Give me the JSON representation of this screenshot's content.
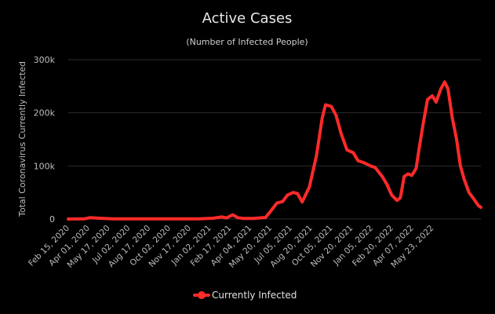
{
  "chart_data": {
    "type": "line",
    "title": "Active Cases",
    "subtitle": "(Number of Infected People)",
    "ylabel": "Total Coronavirus Currently Infected",
    "xlabel": "",
    "ylim": [
      0,
      300000
    ],
    "yticks": [
      {
        "value": 0,
        "label": "0"
      },
      {
        "value": 100000,
        "label": "100k"
      },
      {
        "value": 200000,
        "label": "200k"
      },
      {
        "value": 300000,
        "label": "300k"
      }
    ],
    "xticks": [
      "Feb 15, 2020",
      "Apr 01, 2020",
      "May 17, 2020",
      "Jul 02, 2020",
      "Aug 17, 2020",
      "Oct 02, 2020",
      "Nov 17, 2020",
      "Jan 02, 2021",
      "Feb 17, 2021",
      "Apr 04, 2021",
      "May 20, 2021",
      "Jul 05, 2021",
      "Aug 20, 2021",
      "Oct 05, 2021",
      "Nov 20, 2021",
      "Jan 05, 2022",
      "Feb 20, 2022",
      "Apr 07, 2022",
      "May 23, 2022"
    ],
    "grid": true,
    "legend_position": "bottom-center",
    "series": [
      {
        "name": "Currently Infected",
        "color": "#ff2a2a",
        "points": [
          [
            "2020-02-15",
            0
          ],
          [
            "2020-03-20",
            500
          ],
          [
            "2020-04-01",
            2500
          ],
          [
            "2020-04-20",
            1500
          ],
          [
            "2020-05-17",
            500
          ],
          [
            "2020-07-02",
            300
          ],
          [
            "2020-08-17",
            300
          ],
          [
            "2020-10-02",
            300
          ],
          [
            "2020-11-17",
            500
          ],
          [
            "2020-12-15",
            1500
          ],
          [
            "2021-01-02",
            4000
          ],
          [
            "2021-01-12",
            2000
          ],
          [
            "2021-01-25",
            8000
          ],
          [
            "2021-02-05",
            2500
          ],
          [
            "2021-02-17",
            1000
          ],
          [
            "2021-03-10",
            1000
          ],
          [
            "2021-04-04",
            3000
          ],
          [
            "2021-04-15",
            15000
          ],
          [
            "2021-04-28",
            30000
          ],
          [
            "2021-05-10",
            33000
          ],
          [
            "2021-05-20",
            45000
          ],
          [
            "2021-06-01",
            50000
          ],
          [
            "2021-06-10",
            48000
          ],
          [
            "2021-06-20",
            32000
          ],
          [
            "2021-07-05",
            60000
          ],
          [
            "2021-07-20",
            120000
          ],
          [
            "2021-08-01",
            190000
          ],
          [
            "2021-08-08",
            215000
          ],
          [
            "2021-08-20",
            212000
          ],
          [
            "2021-08-30",
            195000
          ],
          [
            "2021-09-10",
            160000
          ],
          [
            "2021-09-22",
            130000
          ],
          [
            "2021-10-05",
            125000
          ],
          [
            "2021-10-15",
            110000
          ],
          [
            "2021-10-30",
            105000
          ],
          [
            "2021-11-10",
            100000
          ],
          [
            "2021-11-20",
            97000
          ],
          [
            "2021-12-05",
            80000
          ],
          [
            "2021-12-15",
            65000
          ],
          [
            "2021-12-25",
            45000
          ],
          [
            "2022-01-05",
            35000
          ],
          [
            "2022-01-12",
            40000
          ],
          [
            "2022-01-20",
            80000
          ],
          [
            "2022-01-28",
            85000
          ],
          [
            "2022-02-05",
            82000
          ],
          [
            "2022-02-14",
            95000
          ],
          [
            "2022-02-20",
            130000
          ],
          [
            "2022-03-01",
            180000
          ],
          [
            "2022-03-10",
            225000
          ],
          [
            "2022-03-20",
            232000
          ],
          [
            "2022-03-28",
            220000
          ],
          [
            "2022-04-07",
            245000
          ],
          [
            "2022-04-15",
            258000
          ],
          [
            "2022-04-22",
            245000
          ],
          [
            "2022-05-01",
            190000
          ],
          [
            "2022-05-10",
            150000
          ],
          [
            "2022-05-18",
            100000
          ],
          [
            "2022-05-26",
            75000
          ],
          [
            "2022-06-05",
            50000
          ],
          [
            "2022-06-15",
            38000
          ],
          [
            "2022-06-25",
            25000
          ],
          [
            "2022-06-30",
            22000
          ]
        ]
      }
    ]
  }
}
